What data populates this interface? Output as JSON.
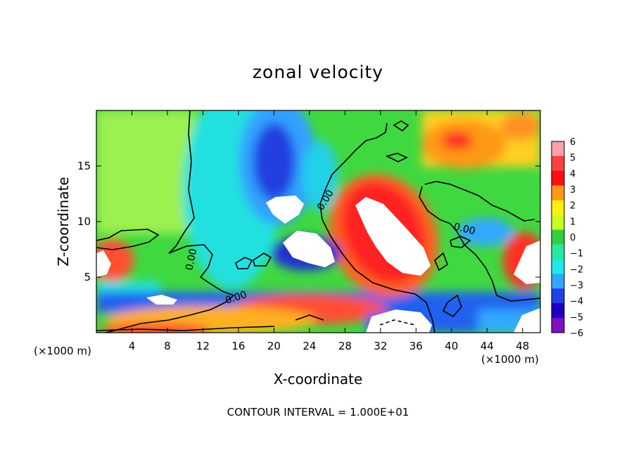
{
  "chart_data": {
    "type": "heatmap",
    "title": "zonal velocity",
    "xlabel": "X-coordinate",
    "ylabel": "Z-coordinate",
    "x_unit_label_left": "(×1000 m)",
    "x_unit_label_right": "(×1000 m)",
    "xlim": [
      0,
      50
    ],
    "ylim": [
      0,
      20
    ],
    "x_ticks": [
      4,
      8,
      12,
      16,
      20,
      24,
      28,
      32,
      36,
      40,
      44,
      48
    ],
    "y_ticks": [
      5,
      10,
      15
    ],
    "colorbar": {
      "levels": [
        6,
        5,
        4,
        3,
        2,
        1,
        0,
        -1,
        -2,
        -3,
        -4,
        -5,
        -6
      ],
      "colors": [
        "#ff9fa8",
        "#ff4040",
        "#ff1010",
        "#ff9818",
        "#ffee10",
        "#c8ff1c",
        "#30d040",
        "#28e8a0",
        "#20e8e8",
        "#30a8ff",
        "#2040e8",
        "#2000c0",
        "#8010c0"
      ]
    },
    "contour_labels": [
      "0.00",
      "0.00",
      "0.00",
      "0.00"
    ],
    "annotation": "CONTOUR INTERVAL = 1.000E+01",
    "grid": false
  }
}
